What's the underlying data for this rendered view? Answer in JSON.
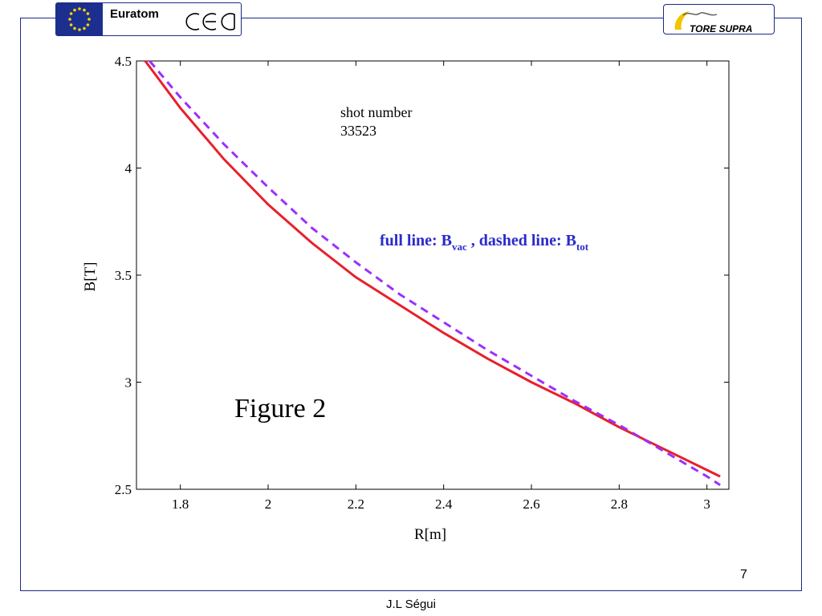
{
  "header": {
    "euratom_label": "Euratom",
    "cea_label": "cea",
    "tore_supra_label": "TORE SUPRA"
  },
  "footer": {
    "page_number": "7",
    "author": "J.L Ségui"
  },
  "annotations": {
    "shot_label": "shot number",
    "shot_value": "33523",
    "figure_label": "Figure 2",
    "legend_prefix": "full line: B",
    "legend_sub1": "vac",
    "legend_mid": " , dashed line: B",
    "legend_sub2": "tot"
  },
  "colors": {
    "full_line": "#e8202a",
    "dashed_line": "#9b30ff",
    "legend_text": "#2a2acc",
    "frame": "#1a2a8a"
  },
  "chart_data": {
    "type": "line",
    "xlabel": "R[m]",
    "ylabel": "B[T]",
    "xlim": [
      1.7,
      3.05
    ],
    "ylim": [
      2.5,
      4.5
    ],
    "xticks": [
      1.8,
      2,
      2.2,
      2.4,
      2.6,
      2.8,
      3
    ],
    "xtick_labels": [
      "1.8",
      "2",
      "2.2",
      "2.4",
      "2.6",
      "2.8",
      "3"
    ],
    "yticks": [
      2.5,
      3,
      3.5,
      4,
      4.5
    ],
    "ytick_labels": [
      "2.5",
      "3",
      "3.5",
      "4",
      "4.5"
    ],
    "grid": false,
    "series": [
      {
        "style": "solid",
        "x": [
          1.72,
          1.8,
          1.9,
          2.0,
          2.1,
          2.2,
          2.3,
          2.4,
          2.5,
          2.6,
          2.7,
          2.8,
          2.9,
          3.0,
          3.03
        ],
        "y": [
          4.5,
          4.28,
          4.04,
          3.83,
          3.65,
          3.49,
          3.36,
          3.23,
          3.11,
          3.0,
          2.9,
          2.79,
          2.69,
          2.59,
          2.56
        ]
      },
      {
        "style": "dashed",
        "x": [
          1.73,
          1.8,
          1.9,
          2.0,
          2.1,
          2.2,
          2.3,
          2.4,
          2.5,
          2.6,
          2.7,
          2.8,
          2.9,
          3.0,
          3.03
        ],
        "y": [
          4.5,
          4.33,
          4.11,
          3.91,
          3.72,
          3.56,
          3.41,
          3.28,
          3.15,
          3.03,
          2.91,
          2.8,
          2.68,
          2.56,
          2.52
        ]
      }
    ]
  }
}
